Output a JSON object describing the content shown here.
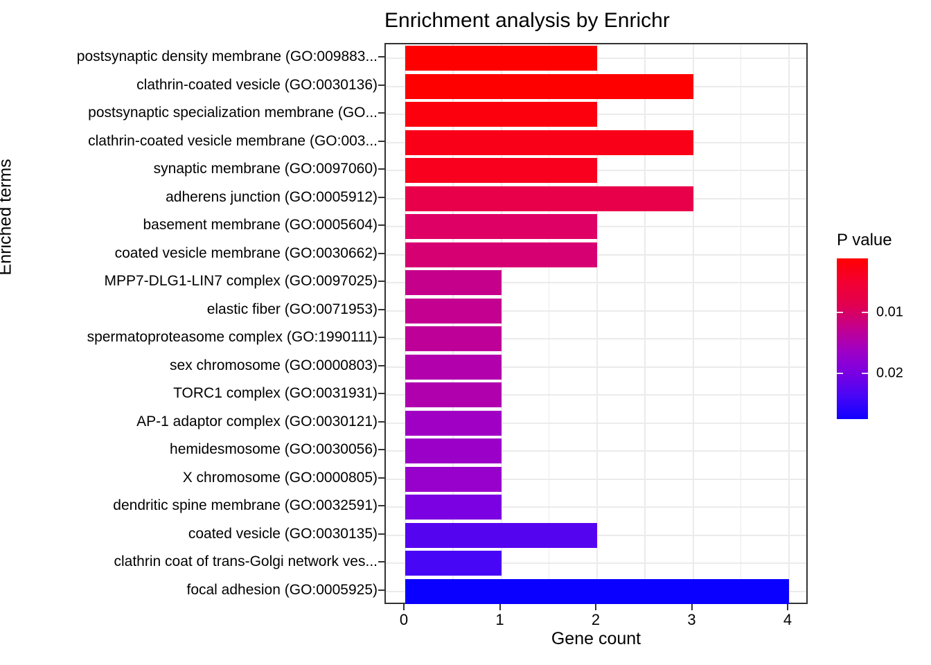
{
  "title": "Enrichment analysis by Enrichr",
  "x_axis": {
    "label": "Gene count",
    "ticks": [
      "0",
      "1",
      "2",
      "3",
      "4"
    ],
    "tick_values": [
      0,
      1,
      2,
      3,
      4
    ],
    "range": [
      0,
      4.4
    ]
  },
  "y_axis": {
    "label": "Enriched terms"
  },
  "legend": {
    "title": "P value",
    "ticks": [
      {
        "label": "0.01",
        "pos_pct": 33.6
      },
      {
        "label": "0.02",
        "pos_pct": 71.6
      }
    ],
    "gradient_stops": [
      "#FF0000",
      "#F40031",
      "#E2004E",
      "#C4008C",
      "#A000C4",
      "#7A00E2",
      "#4806F6",
      "#1000FF"
    ]
  },
  "chart_data": {
    "type": "bar",
    "orientation": "horizontal",
    "title": "Enrichment analysis by Enrichr",
    "xlabel": "Gene count",
    "ylabel": "Enriched terms",
    "xlim": [
      0,
      4.4
    ],
    "grid": true,
    "legend_title": "P value",
    "legend_position": "right",
    "color_encoding": "P value (red = low, blue = high)",
    "categories": [
      "postsynaptic density membrane (GO:009883...",
      "clathrin-coated vesicle (GO:0030136)",
      "postsynaptic specialization membrane (GO...",
      "clathrin-coated vesicle membrane (GO:003...",
      "synaptic membrane (GO:0097060)",
      "adherens junction (GO:0005912)",
      "basement membrane (GO:0005604)",
      "coated vesicle membrane (GO:0030662)",
      "MPP7-DLG1-LIN7 complex (GO:0097025)",
      "elastic fiber (GO:0071953)",
      "spermatoproteasome complex (GO:1990111)",
      "sex chromosome (GO:0000803)",
      "TORC1 complex (GO:0031931)",
      "AP-1 adaptor complex (GO:0030121)",
      "hemidesmosome (GO:0030056)",
      "X chromosome (GO:0000805)",
      "dendritic spine membrane (GO:0032591)",
      "coated vesicle (GO:0030135)",
      "clathrin coat of trans-Golgi network ves...",
      "focal adhesion (GO:0005925)"
    ],
    "values": [
      2,
      3,
      2,
      3,
      2,
      3,
      2,
      2,
      1,
      1,
      1,
      1,
      1,
      1,
      1,
      1,
      1,
      2,
      1,
      4
    ],
    "bar_colors": [
      "#FF0000",
      "#FF0000",
      "#FC000D",
      "#FA0018",
      "#F8001E",
      "#E9004B",
      "#DF0066",
      "#D70072",
      "#C5008B",
      "#C30090",
      "#BE0098",
      "#B100AC",
      "#B000AE",
      "#A000C4",
      "#9B00C8",
      "#9800CC",
      "#7B00E2",
      "#5504F0",
      "#4806F6",
      "#0A00FF"
    ]
  }
}
